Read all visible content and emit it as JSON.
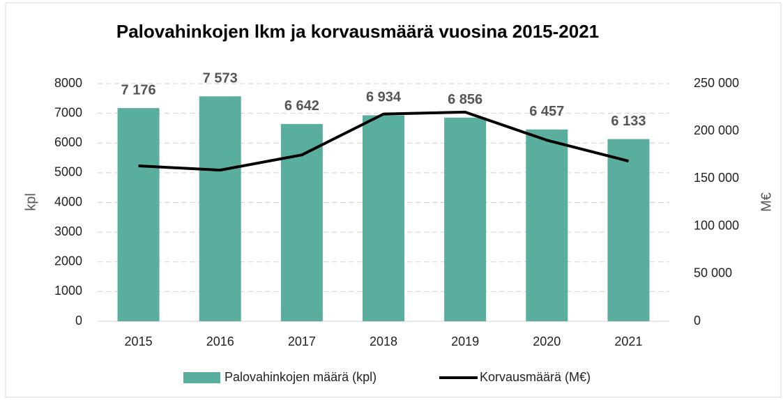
{
  "chart_data": {
    "type": "bar",
    "title": "Palovahinkojen lkm ja korvausmäärä vuosina 2015-2021",
    "categories": [
      "2015",
      "2016",
      "2017",
      "2018",
      "2019",
      "2020",
      "2021"
    ],
    "series": [
      {
        "name": "Palovahinkojen määrä (kpl)",
        "type": "bar",
        "color": "#5aae9e",
        "values": [
          7176,
          7573,
          6642,
          6934,
          6856,
          6457,
          6133
        ],
        "value_labels": [
          "7 176",
          "7 573",
          "6 642",
          "6 934",
          "6 856",
          "6 457",
          "6 133"
        ]
      },
      {
        "name": "Korvausmäärä (M€)",
        "type": "line",
        "color": "#000000",
        "axis": "y2",
        "values": [
          163500,
          159000,
          175000,
          218000,
          220000,
          190500,
          168500
        ]
      }
    ],
    "ylabel": "kpl",
    "y2label": "M€",
    "ylim": [
      0,
      8000
    ],
    "yticks": [
      0,
      1000,
      2000,
      3000,
      4000,
      5000,
      6000,
      7000,
      8000
    ],
    "y2lim": [
      0,
      250000
    ],
    "y2ticks": [
      0,
      {
        "value": 50000,
        "label": "50 000"
      },
      {
        "value": 100000,
        "label": "100 000"
      },
      {
        "value": 150000,
        "label": "150 000"
      },
      {
        "value": 200000,
        "label": "200 000"
      },
      {
        "value": 250000,
        "label": "250 000"
      }
    ],
    "grid": true,
    "legend": "bottom"
  }
}
